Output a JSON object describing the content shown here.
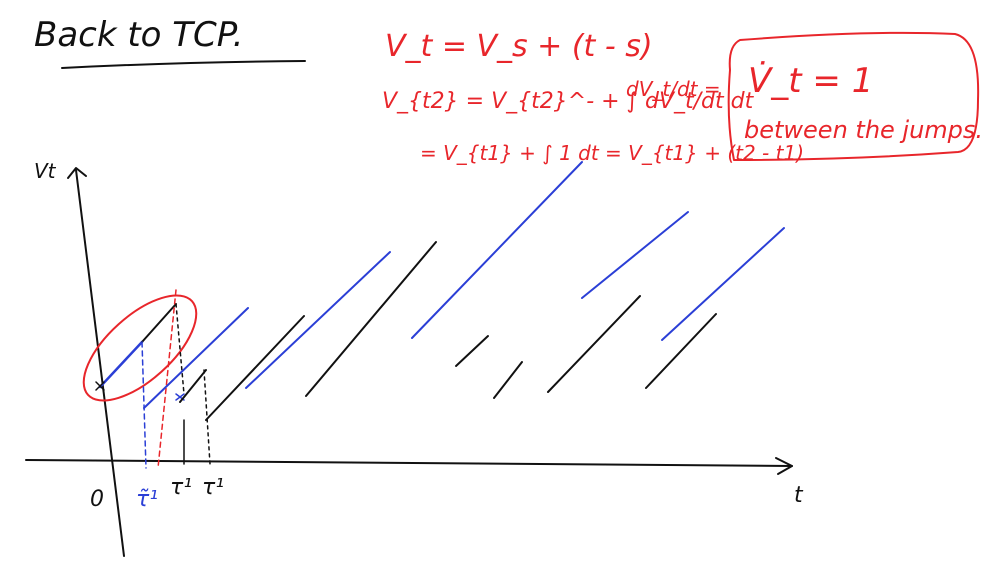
{
  "title": "Back to TCP.",
  "equations": {
    "line1": "V_t = V_s + (t - s)",
    "line2": "V_{t2} = V_{t2}^- + ∫ dV_t/dt dt",
    "line2_deriv": "dV_t/dt =",
    "line3": "= V_{t1} + ∫ 1 dt = V_{t1} + (t2 - t1)"
  },
  "box": {
    "formula": "V̇_t = 1",
    "note": "between the jumps."
  },
  "axes": {
    "y_label": "Vt",
    "x_label": "t",
    "origin_label": "0",
    "tau_blue": "τ̃¹",
    "tau_black_1": "τ¹",
    "tau_black_2": "τ¹"
  },
  "colors": {
    "ink": "#111111",
    "red": "#e8262b",
    "blue": "#2b3fd6"
  }
}
